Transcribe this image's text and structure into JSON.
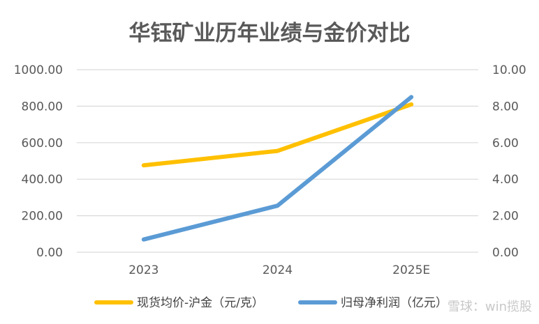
{
  "chart_data": {
    "type": "line",
    "title": "华钰矿业历年业绩与金价对比",
    "categories": [
      "2023",
      "2024",
      "2025E"
    ],
    "y_left": {
      "ylim": [
        0,
        1000
      ],
      "ticks": [
        "0.00",
        "200.00",
        "400.00",
        "600.00",
        "800.00",
        "1000.00"
      ]
    },
    "y_right": {
      "ylim": [
        0,
        10
      ],
      "ticks": [
        "0.00",
        "2.00",
        "4.00",
        "6.00",
        "8.00",
        "10.00"
      ]
    },
    "series": [
      {
        "name": "现货均价-沪金（元/克）",
        "axis": "left",
        "color": "#FFC000",
        "values": [
          476,
          555,
          810
        ]
      },
      {
        "name": "归母净利润（亿元）",
        "axis": "right",
        "color": "#5B9BD5",
        "values": [
          0.7,
          2.55,
          8.5
        ]
      }
    ],
    "legend_position": "bottom"
  },
  "watermark": "雪球：win揽股"
}
